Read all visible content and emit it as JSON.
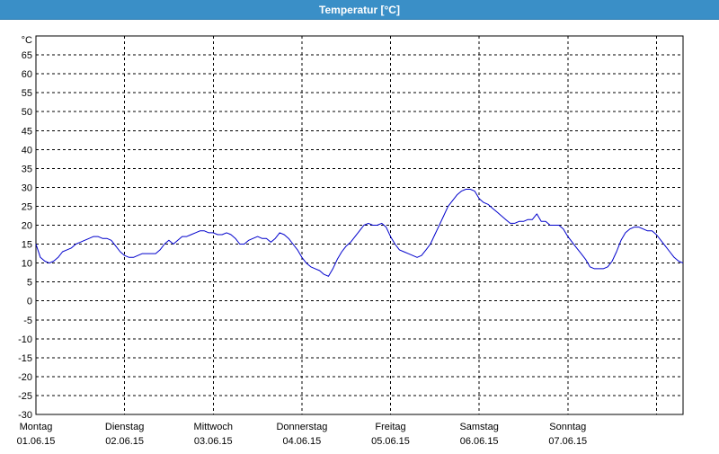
{
  "title": "Temperatur [°C]",
  "chart_data": {
    "type": "line",
    "title": "Temperatur [°C]",
    "ylabel": "°C",
    "xlabel": "",
    "ylim": [
      -30,
      70
    ],
    "yticks": [
      65,
      60,
      55,
      50,
      45,
      40,
      35,
      30,
      25,
      20,
      15,
      10,
      5,
      0,
      -5,
      -10,
      -15,
      -20,
      -25,
      -30
    ],
    "grid": true,
    "x_day_labels": [
      {
        "day": "Montag",
        "date": "01.06.15"
      },
      {
        "day": "Dienstag",
        "date": "02.06.15"
      },
      {
        "day": "Mittwoch",
        "date": "03.06.15"
      },
      {
        "day": "Donnerstag",
        "date": "04.06.15"
      },
      {
        "day": "Freitag",
        "date": "05.06.15"
      },
      {
        "day": "Samstag",
        "date": "06.06.15"
      },
      {
        "day": "Sonntag",
        "date": "07.06.15"
      }
    ],
    "series": [
      {
        "color": "#0000cc",
        "points": [
          [
            0.0,
            15
          ],
          [
            0.05,
            11.5
          ],
          [
            0.1,
            10.5
          ],
          [
            0.15,
            10
          ],
          [
            0.2,
            10.5
          ],
          [
            0.25,
            11.5
          ],
          [
            0.3,
            13
          ],
          [
            0.35,
            13.5
          ],
          [
            0.4,
            14
          ],
          [
            0.45,
            15
          ],
          [
            0.5,
            15.5
          ],
          [
            0.55,
            16
          ],
          [
            0.6,
            16.5
          ],
          [
            0.65,
            17
          ],
          [
            0.7,
            17
          ],
          [
            0.75,
            16.5
          ],
          [
            0.8,
            16.5
          ],
          [
            0.85,
            16
          ],
          [
            0.9,
            14.5
          ],
          [
            0.95,
            13
          ],
          [
            1.0,
            12
          ],
          [
            1.05,
            11.5
          ],
          [
            1.1,
            11.5
          ],
          [
            1.15,
            12
          ],
          [
            1.2,
            12.5
          ],
          [
            1.25,
            12.5
          ],
          [
            1.3,
            12.5
          ],
          [
            1.35,
            12.5
          ],
          [
            1.4,
            13.5
          ],
          [
            1.45,
            15
          ],
          [
            1.5,
            16
          ],
          [
            1.55,
            15
          ],
          [
            1.6,
            16
          ],
          [
            1.65,
            17
          ],
          [
            1.7,
            17
          ],
          [
            1.75,
            17.5
          ],
          [
            1.8,
            18
          ],
          [
            1.85,
            18.5
          ],
          [
            1.9,
            18.5
          ],
          [
            1.95,
            18
          ],
          [
            2.0,
            18
          ],
          [
            2.05,
            17.5
          ],
          [
            2.1,
            17.5
          ],
          [
            2.15,
            18
          ],
          [
            2.2,
            17.5
          ],
          [
            2.25,
            16.5
          ],
          [
            2.3,
            15
          ],
          [
            2.35,
            15
          ],
          [
            2.4,
            16
          ],
          [
            2.45,
            16.5
          ],
          [
            2.5,
            17
          ],
          [
            2.55,
            16.5
          ],
          [
            2.6,
            16.5
          ],
          [
            2.65,
            15.5
          ],
          [
            2.7,
            16.5
          ],
          [
            2.75,
            18
          ],
          [
            2.8,
            17.5
          ],
          [
            2.85,
            16.5
          ],
          [
            2.9,
            15
          ],
          [
            2.95,
            13.5
          ],
          [
            3.0,
            11.5
          ],
          [
            3.05,
            10
          ],
          [
            3.1,
            9
          ],
          [
            3.15,
            8.5
          ],
          [
            3.2,
            8
          ],
          [
            3.25,
            7
          ],
          [
            3.3,
            6.5
          ],
          [
            3.35,
            8.5
          ],
          [
            3.4,
            11
          ],
          [
            3.45,
            13
          ],
          [
            3.5,
            14.5
          ],
          [
            3.55,
            15.5
          ],
          [
            3.6,
            17
          ],
          [
            3.65,
            18.5
          ],
          [
            3.7,
            20
          ],
          [
            3.75,
            20.5
          ],
          [
            3.8,
            20
          ],
          [
            3.85,
            20
          ],
          [
            3.9,
            20.5
          ],
          [
            3.95,
            19.5
          ],
          [
            4.0,
            17
          ],
          [
            4.05,
            15
          ],
          [
            4.1,
            13.5
          ],
          [
            4.15,
            13
          ],
          [
            4.2,
            12.5
          ],
          [
            4.25,
            12
          ],
          [
            4.3,
            11.5
          ],
          [
            4.35,
            12
          ],
          [
            4.4,
            13.5
          ],
          [
            4.45,
            15
          ],
          [
            4.5,
            17.5
          ],
          [
            4.55,
            20
          ],
          [
            4.6,
            22.5
          ],
          [
            4.65,
            25
          ],
          [
            4.7,
            26.5
          ],
          [
            4.75,
            28
          ],
          [
            4.8,
            29
          ],
          [
            4.85,
            29.5
          ],
          [
            4.9,
            29.5
          ],
          [
            4.95,
            29
          ],
          [
            5.0,
            27
          ],
          [
            5.05,
            26
          ],
          [
            5.1,
            25.5
          ],
          [
            5.15,
            24.5
          ],
          [
            5.2,
            23.5
          ],
          [
            5.25,
            22.5
          ],
          [
            5.3,
            21.5
          ],
          [
            5.35,
            20.5
          ],
          [
            5.4,
            20.5
          ],
          [
            5.45,
            21
          ],
          [
            5.5,
            21
          ],
          [
            5.55,
            21.5
          ],
          [
            5.6,
            21.5
          ],
          [
            5.65,
            23
          ],
          [
            5.7,
            21
          ],
          [
            5.75,
            21
          ],
          [
            5.8,
            20
          ],
          [
            5.85,
            20
          ],
          [
            5.9,
            20
          ],
          [
            5.95,
            19
          ],
          [
            6.0,
            17
          ],
          [
            6.05,
            15.5
          ],
          [
            6.1,
            14
          ],
          [
            6.15,
            12.5
          ],
          [
            6.2,
            11
          ],
          [
            6.25,
            9
          ],
          [
            6.3,
            8.5
          ],
          [
            6.35,
            8.5
          ],
          [
            6.4,
            8.5
          ],
          [
            6.45,
            9
          ],
          [
            6.5,
            10.5
          ],
          [
            6.55,
            13
          ],
          [
            6.6,
            16
          ],
          [
            6.65,
            18
          ],
          [
            6.7,
            19
          ],
          [
            6.75,
            19.5
          ],
          [
            6.8,
            19.5
          ],
          [
            6.85,
            19
          ],
          [
            6.9,
            18.5
          ],
          [
            6.95,
            18.5
          ],
          [
            7.0,
            17.5
          ],
          [
            7.05,
            16
          ],
          [
            7.1,
            14.5
          ],
          [
            7.15,
            13
          ],
          [
            7.2,
            11.5
          ],
          [
            7.25,
            10.5
          ],
          [
            7.3,
            10
          ]
        ]
      }
    ]
  }
}
